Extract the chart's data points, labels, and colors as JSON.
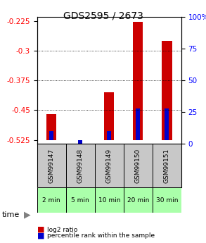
{
  "title": "GDS2595 / 2673",
  "samples": [
    "GSM99147",
    "GSM99148",
    "GSM99149",
    "GSM99150",
    "GSM99151"
  ],
  "time_labels": [
    "2 min",
    "5 min",
    "10 min",
    "20 min",
    "30 min"
  ],
  "log2_ratio": [
    -0.46,
    -0.525,
    -0.405,
    -0.228,
    -0.275
  ],
  "percentile_rank": [
    10,
    0,
    10,
    28,
    28
  ],
  "bar_bottom": -0.525,
  "ylim_left": [
    -0.535,
    -0.215
  ],
  "ylim_right": [
    0,
    100
  ],
  "yticks_left": [
    -0.525,
    -0.45,
    -0.375,
    -0.3,
    -0.225
  ],
  "yticks_right": [
    0,
    25,
    50,
    75,
    100
  ],
  "bar_color_red": "#cc0000",
  "bar_color_blue": "#0000cc",
  "grid_color": "#000000",
  "sample_bg": "#c8c8c8",
  "time_bg": "#aaffaa",
  "legend_red": "log2 ratio",
  "legend_blue": "percentile rank within the sample",
  "time_label": "time"
}
